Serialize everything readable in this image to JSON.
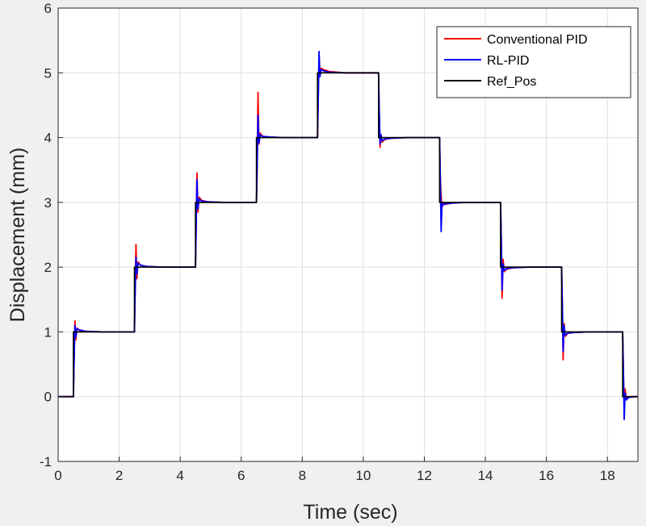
{
  "chart_data": {
    "type": "line",
    "xlabel": "Time (sec)",
    "ylabel": "Displacement (mm)",
    "xlim": [
      0,
      19
    ],
    "ylim": [
      -1,
      6
    ],
    "xticks": [
      0,
      2,
      4,
      6,
      8,
      10,
      12,
      14,
      16,
      18
    ],
    "yticks": [
      -1,
      0,
      1,
      2,
      3,
      4,
      5,
      6
    ],
    "grid": true,
    "legend_position": "top-right",
    "background": "#f0f0f0",
    "series": [
      {
        "name": "Conventional PID",
        "color": "#ff0000",
        "x": [
          0,
          0.5,
          0.52,
          0.55,
          0.58,
          0.62,
          0.7,
          0.9,
          1.4,
          2.5,
          2.52,
          2.55,
          2.58,
          2.62,
          2.7,
          2.9,
          3.4,
          4.5,
          4.52,
          4.55,
          4.58,
          4.62,
          4.7,
          4.9,
          5.4,
          6.5,
          6.52,
          6.55,
          6.58,
          6.62,
          6.7,
          6.9,
          7.4,
          8.5,
          8.52,
          8.55,
          8.58,
          8.62,
          8.7,
          8.9,
          9.4,
          10.5,
          10.52,
          10.55,
          10.58,
          10.62,
          10.7,
          10.9,
          11.4,
          12.5,
          12.52,
          12.55,
          12.58,
          12.62,
          12.7,
          12.9,
          13.4,
          14.5,
          14.52,
          14.55,
          14.58,
          14.62,
          14.7,
          14.9,
          15.4,
          16.5,
          16.52,
          16.55,
          16.58,
          16.62,
          16.7,
          16.9,
          17.4,
          18.5,
          18.52,
          18.55,
          18.58,
          18.62,
          18.7,
          18.9,
          19
        ],
        "y": [
          0,
          0,
          0.55,
          1.17,
          0.88,
          1.06,
          1.02,
          1.01,
          1.0,
          1.0,
          1.55,
          2.35,
          1.82,
          2.08,
          2.03,
          2.01,
          2.0,
          2.0,
          2.55,
          3.45,
          2.85,
          3.08,
          3.03,
          3.01,
          3.0,
          3.0,
          3.55,
          4.7,
          3.9,
          4.07,
          4.02,
          4.01,
          4.0,
          4.0,
          4.55,
          5.25,
          4.96,
          5.07,
          5.05,
          5.02,
          5.0,
          5.0,
          4.45,
          3.85,
          4.05,
          3.93,
          3.97,
          3.99,
          4.0,
          4.0,
          3.45,
          3.1,
          2.92,
          3.0,
          2.97,
          2.99,
          3.0,
          3.0,
          2.45,
          1.52,
          2.12,
          1.93,
          1.97,
          1.99,
          2.0,
          2.0,
          1.45,
          0.57,
          1.13,
          0.93,
          0.98,
          0.99,
          1.0,
          1.0,
          0.45,
          -0.12,
          0.12,
          -0.03,
          0.0,
          0.0,
          0.0
        ]
      },
      {
        "name": "RL-PID",
        "color": "#0000ff",
        "x": [
          0,
          0.5,
          0.52,
          0.55,
          0.58,
          0.62,
          0.7,
          0.9,
          1.4,
          2.5,
          2.52,
          2.55,
          2.58,
          2.62,
          2.7,
          2.9,
          3.4,
          4.5,
          4.52,
          4.55,
          4.58,
          4.62,
          4.7,
          4.9,
          5.4,
          6.5,
          6.52,
          6.55,
          6.58,
          6.62,
          6.7,
          6.9,
          7.4,
          8.5,
          8.52,
          8.55,
          8.58,
          8.62,
          8.7,
          8.9,
          9.4,
          10.5,
          10.52,
          10.55,
          10.58,
          10.62,
          10.7,
          10.9,
          11.4,
          12.5,
          12.52,
          12.55,
          12.58,
          12.62,
          12.7,
          12.9,
          13.4,
          14.5,
          14.52,
          14.55,
          14.58,
          14.62,
          14.7,
          14.9,
          15.4,
          16.5,
          16.52,
          16.55,
          16.58,
          16.62,
          16.7,
          16.9,
          17.4,
          18.5,
          18.52,
          18.55,
          18.58,
          18.62,
          18.7,
          18.9,
          19
        ],
        "y": [
          0,
          0,
          0.5,
          1.1,
          0.92,
          1.05,
          1.03,
          1.01,
          1.0,
          1.0,
          1.5,
          2.15,
          1.9,
          2.06,
          2.03,
          2.01,
          2.0,
          2.0,
          2.5,
          3.35,
          2.9,
          3.05,
          3.02,
          3.01,
          3.0,
          3.0,
          3.5,
          4.35,
          3.92,
          4.04,
          4.02,
          4.01,
          4.0,
          4.0,
          4.5,
          5.33,
          4.94,
          5.05,
          5.03,
          5.01,
          5.0,
          5.0,
          4.5,
          3.9,
          4.04,
          3.95,
          3.98,
          3.99,
          4.0,
          4.0,
          3.5,
          2.55,
          3.0,
          2.96,
          2.98,
          2.99,
          3.0,
          3.0,
          2.5,
          1.65,
          2.05,
          1.95,
          1.98,
          1.99,
          2.0,
          2.0,
          1.5,
          0.7,
          1.1,
          0.95,
          0.98,
          0.99,
          1.0,
          1.0,
          0.5,
          -0.35,
          0.05,
          -0.05,
          -0.01,
          0.0,
          0.0
        ]
      },
      {
        "name": "Ref_Pos",
        "color": "#000000",
        "x": [
          0,
          0.5,
          0.5,
          2.5,
          2.5,
          4.5,
          4.5,
          6.5,
          6.5,
          8.5,
          8.5,
          10.5,
          10.5,
          12.5,
          12.5,
          14.5,
          14.5,
          16.5,
          16.5,
          18.5,
          18.5,
          19
        ],
        "y": [
          0,
          0,
          1,
          1,
          2,
          2,
          3,
          3,
          4,
          4,
          5,
          5,
          4,
          4,
          3,
          3,
          2,
          2,
          1,
          1,
          0,
          0
        ]
      }
    ]
  }
}
